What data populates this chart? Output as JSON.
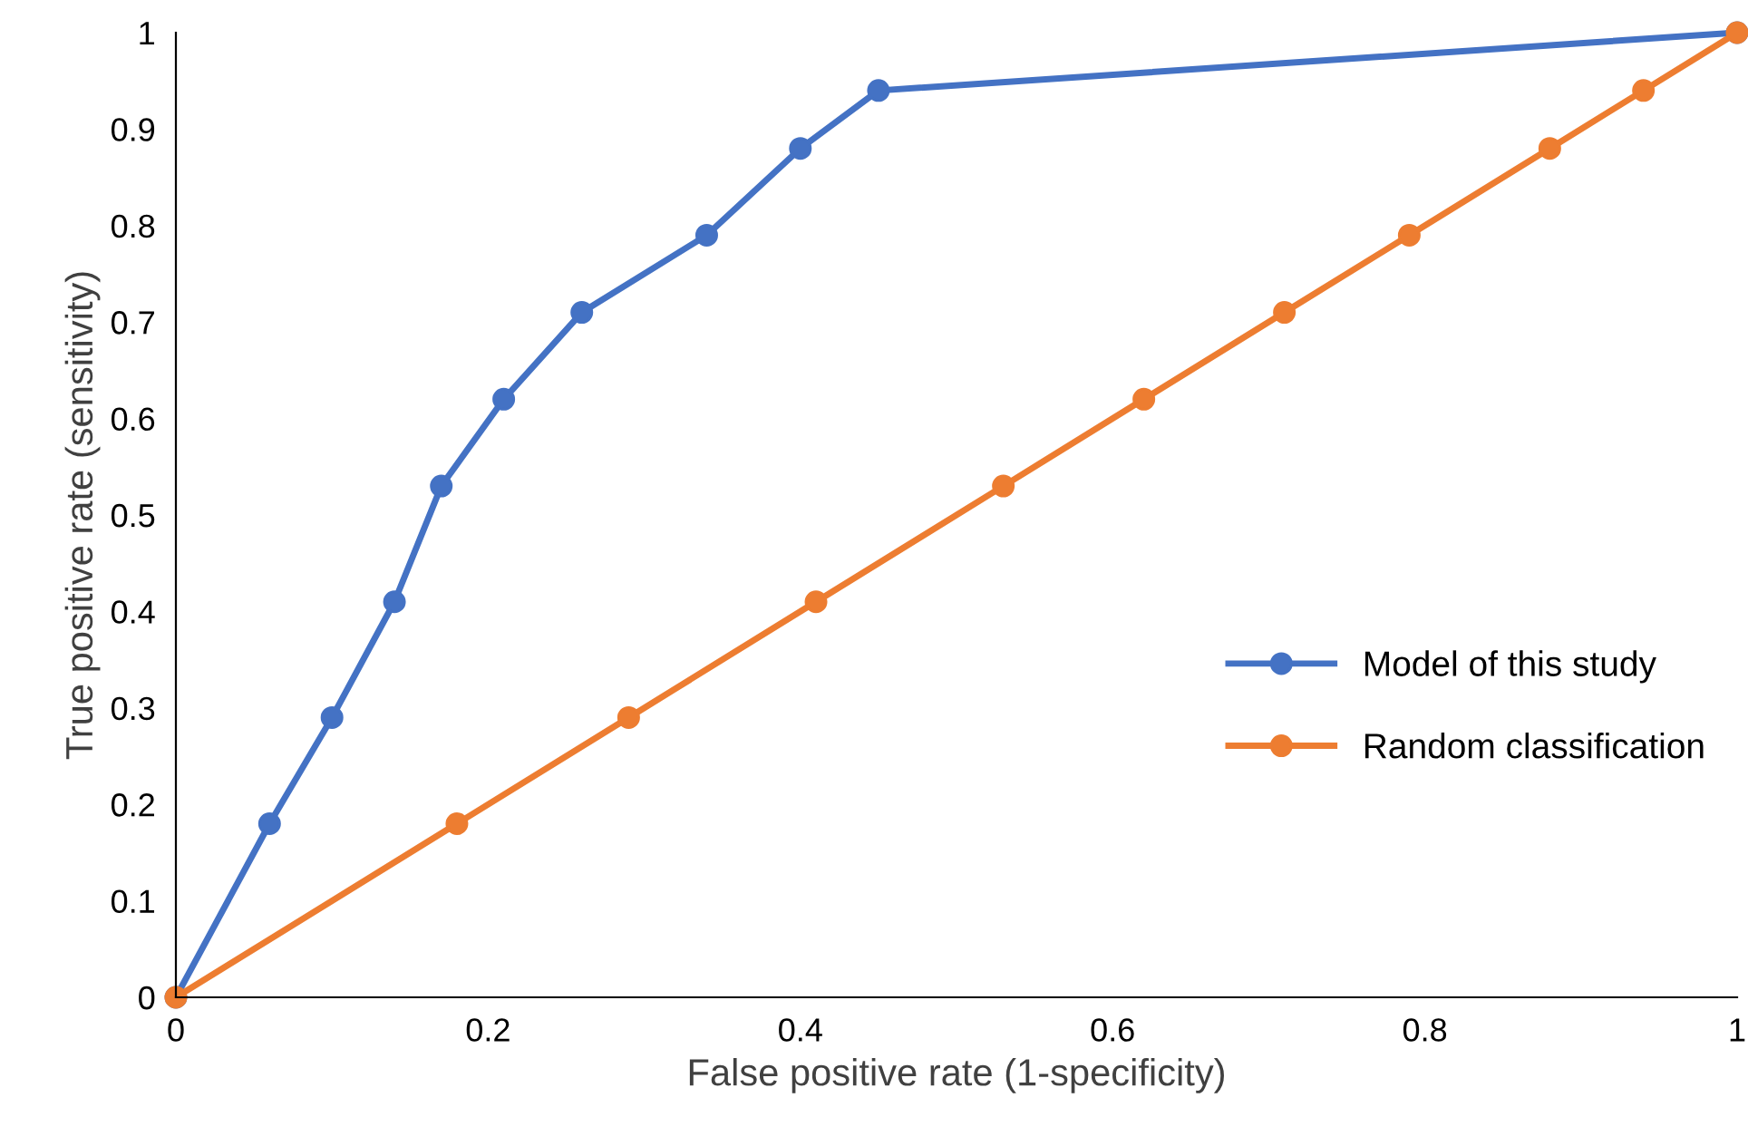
{
  "chart_data": {
    "type": "line",
    "xlabel": "False positive rate (1-specificity)",
    "ylabel": "True positive rate (sensitivity)",
    "series": [
      {
        "name": "Model of this study",
        "color": "#4472c4",
        "x": [
          0,
          0.06,
          0.1,
          0.14,
          0.17,
          0.21,
          0.26,
          0.34,
          0.4,
          0.45,
          1
        ],
        "values": [
          0,
          0.18,
          0.29,
          0.41,
          0.53,
          0.62,
          0.71,
          0.79,
          0.88,
          0.94,
          1
        ]
      },
      {
        "name": "Random classification",
        "color": "#ed7d31",
        "x": [
          0,
          0.18,
          0.29,
          0.41,
          0.53,
          0.62,
          0.71,
          0.79,
          0.88,
          0.94,
          1
        ],
        "values": [
          0,
          0.18,
          0.29,
          0.41,
          0.53,
          0.62,
          0.71,
          0.79,
          0.88,
          0.94,
          1
        ]
      }
    ],
    "xlim": [
      0,
      1
    ],
    "ylim": [
      0,
      1
    ],
    "xticks": [
      0,
      0.2,
      0.4,
      0.6,
      0.8,
      1
    ],
    "yticks": [
      0,
      0.1,
      0.2,
      0.3,
      0.4,
      0.5,
      0.6,
      0.7,
      0.8,
      0.9,
      1
    ],
    "grid": false,
    "legend": "right",
    "marker": "circle",
    "line_style": "solid"
  }
}
